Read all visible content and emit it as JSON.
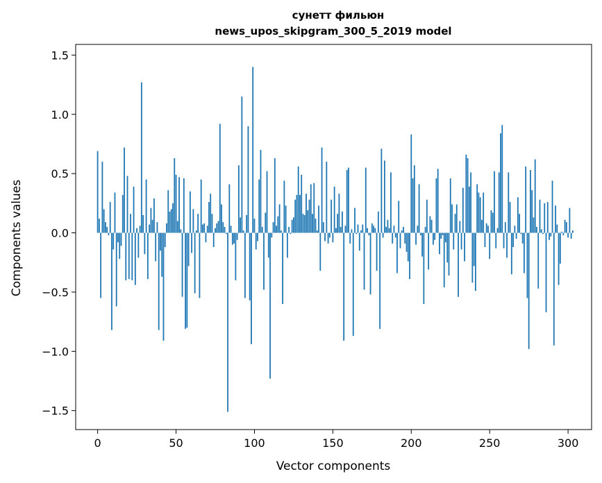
{
  "chart_data": {
    "type": "bar",
    "title": "сунетт фильюн",
    "subtitle": "news_upos_skipgram_300_5_2019 model",
    "xlabel": "Vector components",
    "ylabel": "Components values",
    "xlim": [
      -14,
      315
    ],
    "ylim": [
      -1.66,
      1.59
    ],
    "xticks": [
      0,
      50,
      100,
      150,
      200,
      250,
      300
    ],
    "xtick_labels": [
      "0",
      "50",
      "100",
      "150",
      "200",
      "250",
      "300"
    ],
    "yticks": [
      -1.5,
      -1.0,
      -0.5,
      0.0,
      0.5,
      1.0,
      1.5
    ],
    "ytick_labels": [
      "−1.5",
      "−1.0",
      "−0.5",
      "0.0",
      "0.5",
      "1.0",
      "1.5"
    ],
    "grid": false,
    "bar_color": "#1f77b4",
    "values": [
      0.69,
      0.12,
      -0.55,
      0.6,
      0.2,
      0.09,
      0.05,
      -0.02,
      0.26,
      -0.82,
      -0.14,
      0.34,
      -0.62,
      -0.08,
      -0.22,
      -0.11,
      0.32,
      0.72,
      -0.4,
      0.48,
      -0.39,
      0.16,
      -0.4,
      0.39,
      -0.44,
      0.04,
      -0.21,
      0.06,
      1.27,
      0.15,
      -0.18,
      0.45,
      -0.39,
      0.07,
      0.21,
      0.11,
      0.29,
      -0.24,
      0.09,
      -0.82,
      -0.15,
      -0.37,
      -0.91,
      -0.12,
      0.08,
      0.36,
      0.18,
      0.2,
      0.25,
      0.63,
      0.49,
      0.1,
      0.47,
      0.03,
      -0.54,
      0.46,
      -0.81,
      -0.8,
      -0.28,
      0.35,
      -0.17,
      0.2,
      -0.51,
      0.02,
      0.16,
      -0.55,
      0.45,
      0.07,
      0.08,
      -0.08,
      0.06,
      0.26,
      0.33,
      0.16,
      -0.12,
      0.04,
      0.08,
      0.1,
      0.92,
      0.24,
      0.09,
      0.05,
      -0.01,
      -1.51,
      0.41,
      0.06,
      -0.1,
      -0.09,
      -0.4,
      -0.06,
      0.57,
      0.13,
      1.15,
      0.02,
      -0.55,
      0.15,
      0.9,
      -0.57,
      -0.94,
      1.4,
      0.12,
      -0.14,
      -0.07,
      0.45,
      0.7,
      0.05,
      -0.48,
      0.17,
      0.52,
      -0.21,
      -1.23,
      -0.04,
      0.09,
      0.63,
      0.06,
      0.14,
      0.24,
      0.02,
      -0.6,
      0.44,
      0.23,
      -0.21,
      0.05,
      -0.01,
      0.11,
      0.13,
      0.28,
      0.32,
      0.56,
      0.32,
      0.49,
      0.16,
      0.15,
      0.33,
      0.19,
      0.28,
      0.41,
      0.16,
      0.42,
      0.12,
      0.02,
      0.23,
      -0.32,
      0.72,
      0.09,
      -0.07,
      0.6,
      -0.09,
      -0.04,
      0.28,
      -0.08,
      0.39,
      0.04,
      0.16,
      0.33,
      0.05,
      0.18,
      -0.91,
      0.06,
      0.53,
      0.55,
      -0.09,
      0.03,
      -0.87,
      0.21,
      -0.01,
      0.07,
      -0.15,
      0.02,
      0.07,
      -0.48,
      0.55,
      0.04,
      -0.02,
      -0.52,
      0.08,
      0.06,
      0.04,
      -0.32,
      0.18,
      -0.81,
      0.71,
      -0.04,
      0.61,
      0.05,
      0.11,
      0.04,
      0.51,
      -0.09,
      0.06,
      -0.04,
      -0.34,
      0.27,
      -0.13,
      0.02,
      0.05,
      -0.09,
      -0.16,
      -0.24,
      -0.39,
      0.83,
      0.46,
      0.57,
      -0.1,
      0.06,
      0.41,
      -0.02,
      -0.2,
      -0.6,
      0.05,
      0.28,
      -0.31,
      0.14,
      0.11,
      -0.1,
      -0.06,
      0.46,
      0.54,
      -0.18,
      -0.05,
      -0.02,
      -0.46,
      -0.08,
      -0.25,
      -0.36,
      0.46,
      0.24,
      -0.14,
      0.16,
      0.24,
      -0.54,
      0.1,
      -0.14,
      0.38,
      -0.24,
      0.66,
      0.63,
      0.39,
      0.51,
      -0.42,
      -0.28,
      -0.49,
      0.41,
      0.34,
      0.3,
      0.11,
      0.34,
      -0.12,
      0.08,
      0.06,
      -0.22,
      0.19,
      0.17,
      0.52,
      -0.13,
      0.04,
      0.51,
      0.84,
      0.91,
      -0.13,
      0.09,
      -0.21,
      0.51,
      0.26,
      -0.35,
      -0.12,
      0.06,
      -0.05,
      0.3,
      0.16,
      -0.01,
      -0.09,
      -0.34,
      0.56,
      -0.55,
      -0.98,
      0.53,
      0.36,
      0.13,
      0.62,
      0.05,
      -0.47,
      0.28,
      0.03,
      -0.01,
      0.25,
      -0.67,
      0.26,
      -0.06,
      -0.03,
      0.44,
      -0.95,
      0.23,
      0.07,
      -0.44,
      -0.26,
      0.01,
      -0.02,
      0.11,
      0.09,
      -0.04,
      0.21,
      -0.05,
      0.02
    ]
  }
}
